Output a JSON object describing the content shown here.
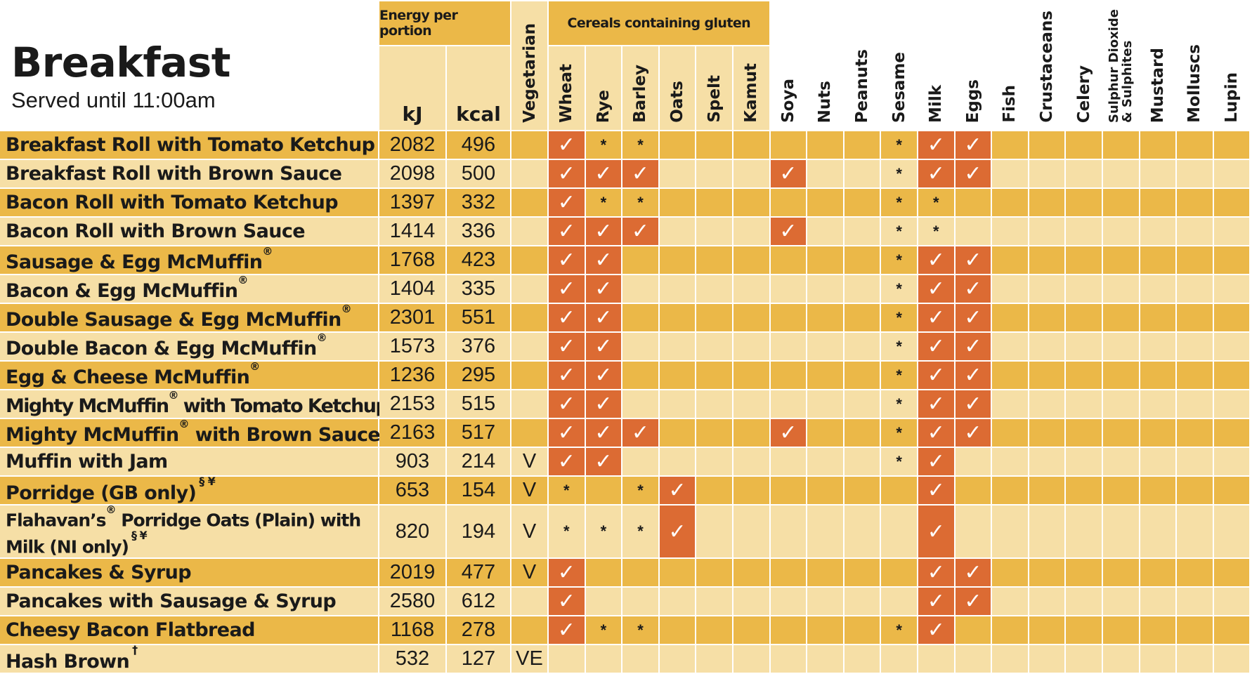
{
  "title": "Breakfast",
  "subtitle": "Served until 11:00am",
  "header": {
    "energy_group": "Energy per portion",
    "kj": "kJ",
    "kcal": "kcal",
    "vegetarian": "Vegetarian",
    "gluten_group": "Cereals containing gluten",
    "gluten_columns": [
      "Wheat",
      "Rye",
      "Barley",
      "Oats",
      "Spelt",
      "Kamut"
    ],
    "allergen_columns": [
      "Soya",
      "Nuts",
      "Peanuts",
      "Sesame",
      "Milk",
      "Eggs",
      "Fish",
      "Crustaceans",
      "Celery",
      "Sulphur Dioxide\n& Sulphites",
      "Mustard",
      "Molluscs",
      "Lupin"
    ]
  },
  "legend": {
    "contains_symbol": "✓",
    "may_contain_symbol": "*"
  },
  "colors": {
    "dark_row": "#ebb848",
    "light_row": "#f6dfa6",
    "contains": "#dc6b33"
  },
  "rows": [
    {
      "name": "Breakfast Roll with Tomato Ketchup",
      "kj": "2082",
      "kcal": "496",
      "veg": "",
      "cells": [
        "✓",
        "*",
        "*",
        "",
        "",
        "",
        "",
        "",
        "",
        "*",
        "✓",
        "✓",
        "",
        "",
        "",
        "",
        "",
        "",
        ""
      ]
    },
    {
      "name": "Breakfast Roll with Brown Sauce",
      "kj": "2098",
      "kcal": "500",
      "veg": "",
      "cells": [
        "✓",
        "✓",
        "✓",
        "",
        "",
        "",
        "✓",
        "",
        "",
        "*",
        "✓",
        "✓",
        "",
        "",
        "",
        "",
        "",
        "",
        ""
      ]
    },
    {
      "name": "Bacon Roll with Tomato Ketchup",
      "kj": "1397",
      "kcal": "332",
      "veg": "",
      "cells": [
        "✓",
        "*",
        "*",
        "",
        "",
        "",
        "",
        "",
        "",
        "*",
        "*",
        "",
        "",
        "",
        "",
        "",
        "",
        "",
        ""
      ]
    },
    {
      "name": "Bacon Roll with Brown Sauce",
      "kj": "1414",
      "kcal": "336",
      "veg": "",
      "cells": [
        "✓",
        "✓",
        "✓",
        "",
        "",
        "",
        "✓",
        "",
        "",
        "*",
        "*",
        "",
        "",
        "",
        "",
        "",
        "",
        "",
        ""
      ]
    },
    {
      "name": "Sausage & Egg McMuffin",
      "reg": "®",
      "kj": "1768",
      "kcal": "423",
      "veg": "",
      "cells": [
        "✓",
        "✓",
        "",
        "",
        "",
        "",
        "",
        "",
        "",
        "*",
        "✓",
        "✓",
        "",
        "",
        "",
        "",
        "",
        "",
        ""
      ]
    },
    {
      "name": "Bacon & Egg McMuffin",
      "reg": "®",
      "kj": "1404",
      "kcal": "335",
      "veg": "",
      "cells": [
        "✓",
        "✓",
        "",
        "",
        "",
        "",
        "",
        "",
        "",
        "*",
        "✓",
        "✓",
        "",
        "",
        "",
        "",
        "",
        "",
        ""
      ]
    },
    {
      "name": "Double Sausage & Egg McMuffin",
      "reg": "®",
      "kj": "2301",
      "kcal": "551",
      "veg": "",
      "cells": [
        "✓",
        "✓",
        "",
        "",
        "",
        "",
        "",
        "",
        "",
        "*",
        "✓",
        "✓",
        "",
        "",
        "",
        "",
        "",
        "",
        ""
      ]
    },
    {
      "name": "Double Bacon & Egg McMuffin",
      "reg": "®",
      "kj": "1573",
      "kcal": "376",
      "veg": "",
      "cells": [
        "✓",
        "✓",
        "",
        "",
        "",
        "",
        "",
        "",
        "",
        "*",
        "✓",
        "✓",
        "",
        "",
        "",
        "",
        "",
        "",
        ""
      ]
    },
    {
      "name": "Egg & Cheese McMuffin",
      "reg": "®",
      "kj": "1236",
      "kcal": "295",
      "veg": "",
      "cells": [
        "✓",
        "✓",
        "",
        "",
        "",
        "",
        "",
        "",
        "",
        "*",
        "✓",
        "✓",
        "",
        "",
        "",
        "",
        "",
        "",
        ""
      ]
    },
    {
      "name": "Mighty McMuffin",
      "reg": "®",
      "suffix": " with Tomato Ketchup",
      "tight": true,
      "kj": "2153",
      "kcal": "515",
      "veg": "",
      "cells": [
        "✓",
        "✓",
        "",
        "",
        "",
        "",
        "",
        "",
        "",
        "*",
        "✓",
        "✓",
        "",
        "",
        "",
        "",
        "",
        "",
        ""
      ]
    },
    {
      "name": "Mighty McMuffin",
      "reg": "®",
      "suffix": " with Brown Sauce",
      "kj": "2163",
      "kcal": "517",
      "veg": "",
      "cells": [
        "✓",
        "✓",
        "✓",
        "",
        "",
        "",
        "✓",
        "",
        "",
        "*",
        "✓",
        "✓",
        "",
        "",
        "",
        "",
        "",
        "",
        ""
      ]
    },
    {
      "name": "Muffin with Jam",
      "kj": "903",
      "kcal": "214",
      "veg": "V",
      "cells": [
        "✓",
        "✓",
        "",
        "",
        "",
        "",
        "",
        "",
        "",
        "*",
        "✓",
        "",
        "",
        "",
        "",
        "",
        "",
        "",
        ""
      ]
    },
    {
      "name": "Porridge (GB only)",
      "mark": "§ ¥",
      "kj": "653",
      "kcal": "154",
      "veg": "V",
      "cells": [
        "*",
        "",
        "*",
        "✓",
        "",
        "",
        "",
        "",
        "",
        "",
        "✓",
        "",
        "",
        "",
        "",
        "",
        "",
        "",
        ""
      ]
    },
    {
      "name": "Flahavan’s",
      "reg": "®",
      "suffix": " Porridge Oats (Plain) with Milk (NI only)",
      "mark": "§ ¥",
      "wrap": true,
      "kj": "820",
      "kcal": "194",
      "veg": "V",
      "cells": [
        "*",
        "*",
        "*",
        "✓",
        "",
        "",
        "",
        "",
        "",
        "",
        "✓",
        "",
        "",
        "",
        "",
        "",
        "",
        "",
        ""
      ]
    },
    {
      "name": "Pancakes & Syrup",
      "kj": "2019",
      "kcal": "477",
      "veg": "V",
      "cells": [
        "✓",
        "",
        "",
        "",
        "",
        "",
        "",
        "",
        "",
        "",
        "✓",
        "✓",
        "",
        "",
        "",
        "",
        "",
        "",
        ""
      ]
    },
    {
      "name": "Pancakes with Sausage & Syrup",
      "kj": "2580",
      "kcal": "612",
      "veg": "",
      "cells": [
        "✓",
        "",
        "",
        "",
        "",
        "",
        "",
        "",
        "",
        "",
        "✓",
        "✓",
        "",
        "",
        "",
        "",
        "",
        "",
        ""
      ]
    },
    {
      "name": "Cheesy Bacon Flatbread",
      "kj": "1168",
      "kcal": "278",
      "veg": "",
      "cells": [
        "✓",
        "*",
        "*",
        "",
        "",
        "",
        "",
        "",
        "",
        "*",
        "✓",
        "",
        "",
        "",
        "",
        "",
        "",
        "",
        ""
      ]
    },
    {
      "name": "Hash Brown",
      "mark": "†",
      "kj": "532",
      "kcal": "127",
      "veg": "VE",
      "cells": [
        "",
        "",
        "",
        "",
        "",
        "",
        "",
        "",
        "",
        "",
        "",
        "",
        "",
        "",
        "",
        "",
        "",
        "",
        ""
      ]
    }
  ]
}
